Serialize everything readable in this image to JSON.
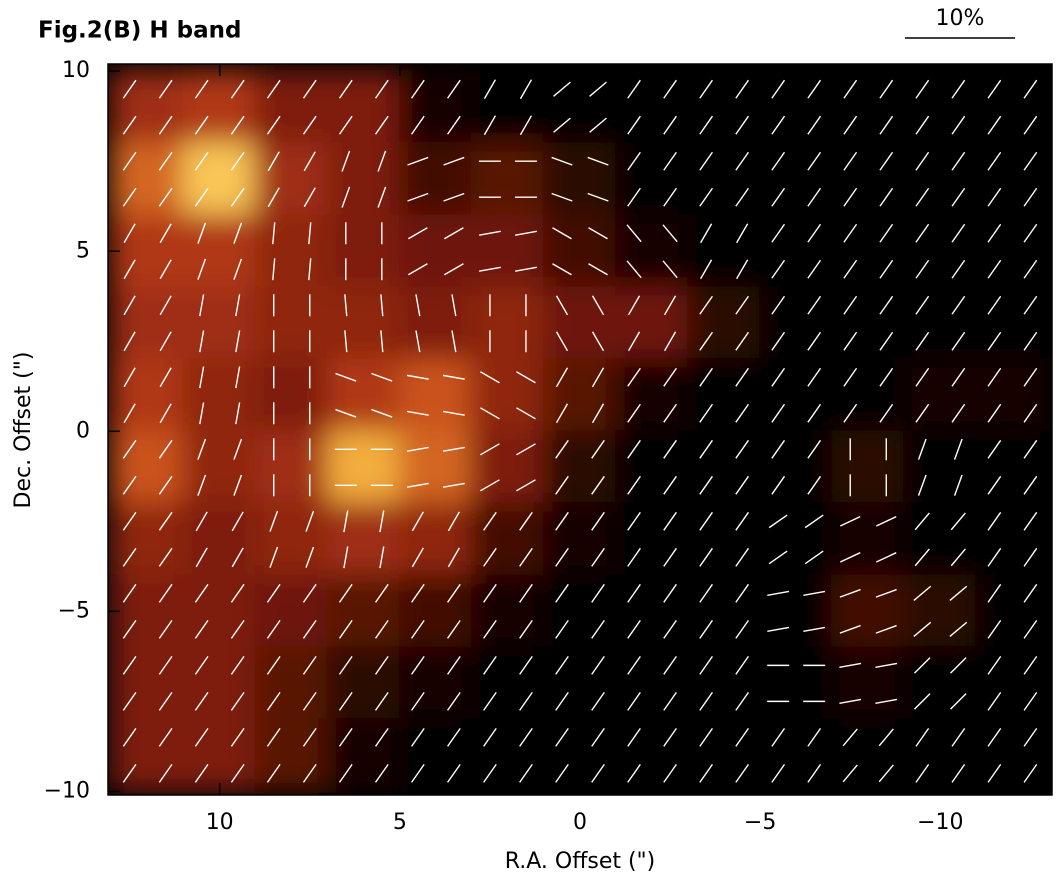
{
  "chart_data": {
    "type": "polarization-map",
    "title": "Fig.2(B) H band",
    "scale_label": "10%",
    "xlabel": "R.A. Offset (\")",
    "ylabel": "Dec. Offset (\")",
    "xlim": [
      13.1,
      -13.1
    ],
    "ylim": [
      -10.1,
      10.2
    ],
    "xticks": [
      10,
      5,
      0,
      {
        "value": -5,
        "label": "−5"
      },
      {
        "value": -10,
        "label": "−10"
      }
    ],
    "yticks": [
      {
        "value": -10,
        "label": "−10"
      },
      {
        "value": -5,
        "label": "−5"
      },
      0,
      5,
      10
    ],
    "colormap": [
      "#000000",
      "#6e1608",
      "#c0401a",
      "#f0a030",
      "#ffe070"
    ],
    "vector_color": "#ffffff",
    "x": [
      12,
      10,
      8,
      6,
      4,
      2,
      0,
      -2,
      -4,
      -6,
      -8,
      -10,
      -12
    ],
    "y": [
      9,
      7,
      5,
      3,
      1,
      -1,
      -3,
      -5,
      -7,
      -9
    ],
    "intensity": [
      [
        0.4,
        0.45,
        0.3,
        0.3,
        0.05,
        0,
        0,
        0,
        0,
        0,
        0,
        0,
        0
      ],
      [
        0.6,
        0.9,
        0.4,
        0.3,
        0.15,
        0.2,
        0.1,
        0,
        0,
        0,
        0,
        0,
        0
      ],
      [
        0.45,
        0.45,
        0.35,
        0.3,
        0.25,
        0.25,
        0.15,
        0.05,
        0,
        0,
        0,
        0,
        0
      ],
      [
        0.4,
        0.4,
        0.35,
        0.35,
        0.3,
        0.35,
        0.25,
        0.25,
        0.1,
        0,
        0,
        0,
        0
      ],
      [
        0.45,
        0.35,
        0.3,
        0.45,
        0.55,
        0.35,
        0.2,
        0.05,
        0,
        0,
        0,
        0.05,
        0.05
      ],
      [
        0.55,
        0.35,
        0.4,
        0.8,
        0.6,
        0.3,
        0.1,
        0,
        0,
        0,
        0.1,
        0,
        0
      ],
      [
        0.35,
        0.3,
        0.35,
        0.4,
        0.35,
        0.15,
        0.05,
        0,
        0,
        0,
        0.05,
        0,
        0
      ],
      [
        0.3,
        0.3,
        0.25,
        0.2,
        0.15,
        0.05,
        0,
        0,
        0,
        0,
        0.15,
        0.1,
        0
      ],
      [
        0.3,
        0.3,
        0.2,
        0.1,
        0.05,
        0,
        0,
        0,
        0,
        0,
        0.05,
        0,
        0
      ],
      [
        0.3,
        0.3,
        0.2,
        0.05,
        0,
        0,
        0,
        0,
        0,
        0,
        0,
        0,
        0
      ]
    ],
    "angle": [
      [
        55,
        55,
        55,
        55,
        55,
        60,
        40,
        55,
        55,
        55,
        55,
        55,
        55
      ],
      [
        55,
        55,
        60,
        70,
        20,
        0,
        160,
        55,
        55,
        55,
        55,
        55,
        55
      ],
      [
        60,
        70,
        85,
        90,
        30,
        10,
        150,
        130,
        60,
        55,
        55,
        55,
        55
      ],
      [
        60,
        80,
        90,
        95,
        100,
        90,
        120,
        60,
        55,
        55,
        55,
        55,
        55
      ],
      [
        60,
        80,
        90,
        160,
        170,
        150,
        60,
        55,
        55,
        55,
        55,
        55,
        55
      ],
      [
        55,
        70,
        90,
        0,
        10,
        30,
        55,
        55,
        55,
        55,
        90,
        70,
        55
      ],
      [
        55,
        60,
        70,
        80,
        60,
        55,
        55,
        55,
        55,
        35,
        25,
        50,
        55
      ],
      [
        55,
        55,
        55,
        55,
        55,
        55,
        55,
        55,
        55,
        10,
        20,
        40,
        55
      ],
      [
        55,
        55,
        55,
        55,
        55,
        55,
        55,
        55,
        55,
        0,
        10,
        45,
        55
      ],
      [
        55,
        55,
        55,
        55,
        55,
        55,
        55,
        55,
        55,
        55,
        50,
        55,
        55
      ]
    ]
  }
}
